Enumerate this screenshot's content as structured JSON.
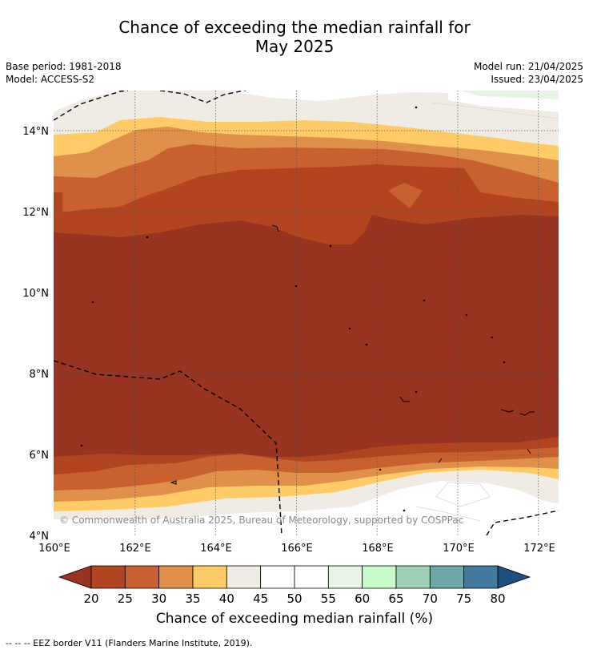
{
  "title": {
    "line1": "Chance of exceeding the median rainfall for",
    "line2": "May 2025"
  },
  "meta": {
    "base_period": "Base period: 1981-2018",
    "model": "Model: ACCESS-S2",
    "model_run": "Model run: 21/04/2025",
    "issued": "Issued: 23/04/2025"
  },
  "map": {
    "lat_ticks": [
      "4°N",
      "6°N",
      "8°N",
      "10°N",
      "12°N",
      "14°N"
    ],
    "lon_ticks": [
      "160°E",
      "162°E",
      "164°E",
      "166°E",
      "168°E",
      "170°E",
      "172°E"
    ],
    "watermark": "© Commonwealth of Australia 2025, Bureau of Meteorology, supported by COSPPac"
  },
  "colorbar": {
    "labels": [
      "20",
      "25",
      "30",
      "35",
      "40",
      "45",
      "50",
      "55",
      "60",
      "65",
      "70",
      "75",
      "80"
    ],
    "colors": [
      "#b2451f",
      "#c8612f",
      "#e09048",
      "#fecb67",
      "#f0ebe5",
      "#ffffff",
      "#ffffff",
      "#e8f5e6",
      "#c8fcc8",
      "#9cd0b6",
      "#6fa6a8",
      "#42799c"
    ],
    "under_color": "#993321",
    "over_color": "#1d4f83",
    "title": "Chance of exceeding median rainfall (%)"
  },
  "footer": "--  --  -- EEZ border V11 (Flanders Marine Institute, 2019)."
}
